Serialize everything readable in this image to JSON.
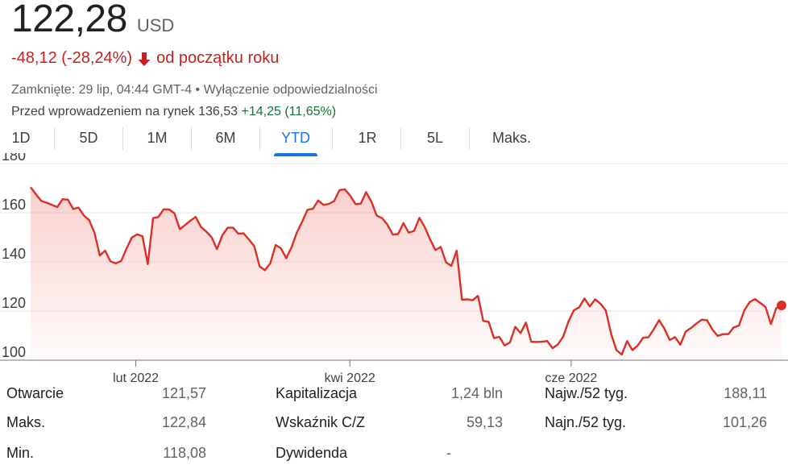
{
  "quote": {
    "price": "122,28",
    "currency": "USD",
    "change": "-48,12 (-28,24%)",
    "change_period": "od początku roku",
    "closed_line": "Zamknięte: 29 lip, 04:44 GMT-4 • Wyłączenie odpowiedzialności",
    "premarket_label": "Przed wprowadzeniem na rynek 136,53",
    "premarket_change": "+14,25 (11,65%)"
  },
  "colors": {
    "negative": "#c5221f",
    "positive": "#137333",
    "accent": "#1a73e8",
    "line": "#d93025"
  },
  "icons": {
    "change_arrow": "arrow-down-icon"
  },
  "tabs": [
    {
      "label": "1D",
      "active": false
    },
    {
      "label": "5D",
      "active": false
    },
    {
      "label": "1M",
      "active": false
    },
    {
      "label": "6M",
      "active": false
    },
    {
      "label": "YTD",
      "active": true
    },
    {
      "label": "1R",
      "active": false
    },
    {
      "label": "5L",
      "active": false
    },
    {
      "label": "Maks.",
      "active": false
    }
  ],
  "chart_data": {
    "type": "area",
    "y_ticks": [
      "180",
      "160",
      "140",
      "120",
      "100"
    ],
    "ylim": [
      100,
      180
    ],
    "x_ticks": [
      {
        "label": "lut 2022",
        "date": "2022-02-01"
      },
      {
        "label": "kwi 2022",
        "date": "2022-04-01"
      },
      {
        "label": "cze 2022",
        "date": "2022-06-01"
      }
    ],
    "x_range": [
      "2022-01-03",
      "2022-07-29"
    ],
    "grid": true,
    "series": [
      {
        "values": [
          170.4,
          167.5,
          164.8,
          164.1,
          163.2,
          162.3,
          165.5,
          165.3,
          161.5,
          162.1,
          158.9,
          157.0,
          151.8,
          142.6,
          144.6,
          140.2,
          139.4,
          140.4,
          145.4,
          149.9,
          151.2,
          150.5,
          139.1,
          157.8,
          158.3,
          161.4,
          161.3,
          159.8,
          153.3,
          155.0,
          156.8,
          158.3,
          154.2,
          152.3,
          150.0,
          145.2,
          150.9,
          153.9,
          153.9,
          151.5,
          151.6,
          149.1,
          146.4,
          138.2,
          136.6,
          139.4,
          146.9,
          145.5,
          141.5,
          146.0,
          152.0,
          156.4,
          161.2,
          161.6,
          165.0,
          163.2,
          163.6,
          164.8,
          169.2,
          169.5,
          167.0,
          163.5,
          163.7,
          168.4,
          164.5,
          158.8,
          157.8,
          155.1,
          151.1,
          151.3,
          155.8,
          151.9,
          152.6,
          157.9,
          154.2,
          149.2,
          144.8,
          146.1,
          139.8,
          138.4,
          144.6,
          124.6,
          124.8,
          124.4,
          126.2,
          116.0,
          115.6,
          109.0,
          109.5,
          106.0,
          107.2,
          113.6,
          111.0,
          115.3,
          107.5,
          107.4,
          107.5,
          107.8,
          104.9,
          106.4,
          109.6,
          115.8,
          120.3,
          121.5,
          125.1,
          121.9,
          124.8,
          123.0,
          120.2,
          110.7,
          104.1,
          102.3,
          107.8,
          104.1,
          106.0,
          109.1,
          109.3,
          112.6,
          116.3,
          112.9,
          108.2,
          109.4,
          106.3,
          111.6,
          113.1,
          114.9,
          116.5,
          116.3,
          112.5,
          109.9,
          110.6,
          110.6,
          113.3,
          114.1,
          120.2,
          123.6,
          124.9,
          123.3,
          121.6,
          114.7,
          121.2,
          122.3
        ]
      }
    ]
  },
  "stats": [
    [
      {
        "label": "Otwarcie",
        "value": "121,57"
      },
      {
        "label": "Kapitalizacja",
        "value": "1,24 bln"
      },
      {
        "label": "Najw./52 tyg.",
        "value": "188,11"
      }
    ],
    [
      {
        "label": "Maks.",
        "value": "122,84"
      },
      {
        "label": "Wskaźnik C/Z",
        "value": "59,13"
      },
      {
        "label": "Najn./52 tyg.",
        "value": "101,26"
      }
    ],
    [
      {
        "label": "Min.",
        "value": "118,08"
      },
      {
        "label": "Dywidenda",
        "value": "-"
      },
      {
        "label": "",
        "value": ""
      }
    ]
  ]
}
